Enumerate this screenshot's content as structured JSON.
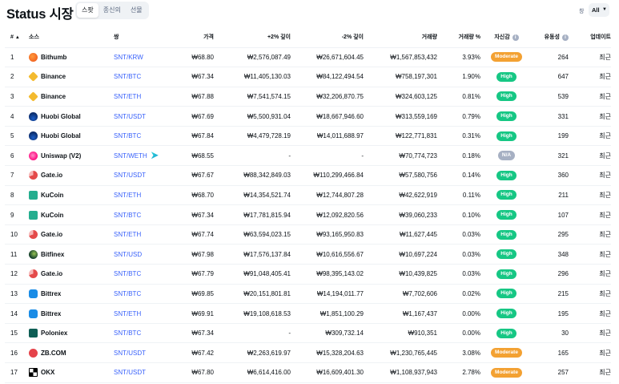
{
  "header": {
    "title": "Status 시장",
    "tabs": [
      {
        "label": "스팟",
        "active": true
      },
      {
        "label": "종신의",
        "active": false
      },
      {
        "label": "선물",
        "active": false
      }
    ],
    "filter_label": "창",
    "filter_value": "All"
  },
  "columns": {
    "rank": "#",
    "source": "소스",
    "pair": "쌍",
    "price": "가격",
    "plus2": "+2% 깊이",
    "minus2": "-2% 깊이",
    "volume": "거래량",
    "volume_pct": "거래량 %",
    "confidence": "자신감",
    "liquidity": "유동성",
    "updated": "업데이트"
  },
  "icons": {
    "sort": "sort-asc-icon",
    "info": "info-icon",
    "chevron": "chevron-down-icon"
  },
  "colors": {
    "link": "#3861fb",
    "high": "#16c784",
    "moderate": "#f3a132",
    "na": "#a6b0c3"
  },
  "rows": [
    {
      "rank": "1",
      "source": "Bithumb",
      "logo": "bithumb-logo-icon",
      "pair": "SNT/KRW",
      "price": "₩68.80",
      "plus2": "₩2,576,087.49",
      "minus2": "₩26,671,604.45",
      "volume": "₩1,567,853,432",
      "volume_pct": "3.93%",
      "confidence": "Moderate",
      "liquidity": "264",
      "updated": "최근"
    },
    {
      "rank": "2",
      "source": "Binance",
      "logo": "binance-logo-icon",
      "pair": "SNT/BTC",
      "price": "₩67.34",
      "plus2": "₩11,405,130.03",
      "minus2": "₩84,122,494.54",
      "volume": "₩758,197,301",
      "volume_pct": "1.90%",
      "confidence": "High",
      "liquidity": "647",
      "updated": "최근"
    },
    {
      "rank": "3",
      "source": "Binance",
      "logo": "binance-logo-icon",
      "pair": "SNT/ETH",
      "price": "₩67.88",
      "plus2": "₩7,541,574.15",
      "minus2": "₩32,206,870.75",
      "volume": "₩324,603,125",
      "volume_pct": "0.81%",
      "confidence": "High",
      "liquidity": "539",
      "updated": "최근"
    },
    {
      "rank": "4",
      "source": "Huobi Global",
      "logo": "huobi-logo-icon",
      "pair": "SNT/USDT",
      "price": "₩67.69",
      "plus2": "₩5,500,931.04",
      "minus2": "₩18,667,946.60",
      "volume": "₩313,559,169",
      "volume_pct": "0.79%",
      "confidence": "High",
      "liquidity": "331",
      "updated": "최근"
    },
    {
      "rank": "5",
      "source": "Huobi Global",
      "logo": "huobi-logo-icon",
      "pair": "SNT/BTC",
      "price": "₩67.84",
      "plus2": "₩4,479,728.19",
      "minus2": "₩14,011,688.97",
      "volume": "₩122,771,831",
      "volume_pct": "0.31%",
      "confidence": "High",
      "liquidity": "199",
      "updated": "최근"
    },
    {
      "rank": "6",
      "source": "Uniswap (V2)",
      "logo": "uniswap-logo-icon",
      "pair": "SNT/WETH",
      "pair_extra": true,
      "price": "₩68.55",
      "plus2": "-",
      "minus2": "-",
      "volume": "₩70,774,723",
      "volume_pct": "0.18%",
      "confidence": "N/A",
      "liquidity": "321",
      "updated": "최근"
    },
    {
      "rank": "7",
      "source": "Gate.io",
      "logo": "gateio-logo-icon",
      "pair": "SNT/USDT",
      "price": "₩67.67",
      "plus2": "₩88,342,849.03",
      "minus2": "₩110,299,466.84",
      "volume": "₩57,580,756",
      "volume_pct": "0.14%",
      "confidence": "High",
      "liquidity": "360",
      "updated": "최근"
    },
    {
      "rank": "8",
      "source": "KuCoin",
      "logo": "kucoin-logo-icon",
      "pair": "SNT/ETH",
      "price": "₩68.70",
      "plus2": "₩14,354,521.74",
      "minus2": "₩12,744,807.28",
      "volume": "₩42,622,919",
      "volume_pct": "0.11%",
      "confidence": "High",
      "liquidity": "211",
      "updated": "최근"
    },
    {
      "rank": "9",
      "source": "KuCoin",
      "logo": "kucoin-logo-icon",
      "pair": "SNT/BTC",
      "price": "₩67.34",
      "plus2": "₩17,781,815.94",
      "minus2": "₩12,092,820.56",
      "volume": "₩39,060,233",
      "volume_pct": "0.10%",
      "confidence": "High",
      "liquidity": "107",
      "updated": "최근"
    },
    {
      "rank": "10",
      "source": "Gate.io",
      "logo": "gateio-logo-icon",
      "pair": "SNT/ETH",
      "price": "₩67.74",
      "plus2": "₩63,594,023.15",
      "minus2": "₩93,165,950.83",
      "volume": "₩11,627,445",
      "volume_pct": "0.03%",
      "confidence": "High",
      "liquidity": "295",
      "updated": "최근"
    },
    {
      "rank": "11",
      "source": "Bitfinex",
      "logo": "bitfinex-logo-icon",
      "pair": "SNT/USD",
      "price": "₩67.98",
      "plus2": "₩17,576,137.84",
      "minus2": "₩10,616,556.67",
      "volume": "₩10,697,224",
      "volume_pct": "0.03%",
      "confidence": "High",
      "liquidity": "348",
      "updated": "최근"
    },
    {
      "rank": "12",
      "source": "Gate.io",
      "logo": "gateio-logo-icon",
      "pair": "SNT/BTC",
      "price": "₩67.79",
      "plus2": "₩91,048,405.41",
      "minus2": "₩98,395,143.02",
      "volume": "₩10,439,825",
      "volume_pct": "0.03%",
      "confidence": "High",
      "liquidity": "296",
      "updated": "최근"
    },
    {
      "rank": "13",
      "source": "Bittrex",
      "logo": "bittrex-logo-icon",
      "pair": "SNT/BTC",
      "price": "₩69.85",
      "plus2": "₩20,151,801.81",
      "minus2": "₩14,194,011.77",
      "volume": "₩7,702,606",
      "volume_pct": "0.02%",
      "confidence": "High",
      "liquidity": "215",
      "updated": "최근"
    },
    {
      "rank": "14",
      "source": "Bittrex",
      "logo": "bittrex-logo-icon",
      "pair": "SNT/ETH",
      "price": "₩69.91",
      "plus2": "₩19,108,618.53",
      "minus2": "₩1,851,100.29",
      "volume": "₩1,167,437",
      "volume_pct": "0.00%",
      "confidence": "High",
      "liquidity": "195",
      "updated": "최근"
    },
    {
      "rank": "15",
      "source": "Poloniex",
      "logo": "poloniex-logo-icon",
      "pair": "SNT/BTC",
      "price": "₩67.34",
      "plus2": "-",
      "minus2": "₩309,732.14",
      "volume": "₩910,351",
      "volume_pct": "0.00%",
      "confidence": "High",
      "liquidity": "30",
      "updated": "최근"
    },
    {
      "rank": "16",
      "source": "ZB.COM",
      "logo": "zbcom-logo-icon",
      "pair": "SNT/USDT",
      "price": "₩67.42",
      "plus2": "₩2,263,619.97",
      "minus2": "₩15,328,204.63",
      "volume": "₩1,230,765,445",
      "volume_pct": "3.08%",
      "confidence": "Moderate",
      "liquidity": "165",
      "updated": "최근"
    },
    {
      "rank": "17",
      "source": "OKX",
      "logo": "okx-logo-icon",
      "pair": "SNT/USDT",
      "price": "₩67.80",
      "plus2": "₩6,614,416.00",
      "minus2": "₩16,609,401.30",
      "volume": "₩1,108,937,943",
      "volume_pct": "2.78%",
      "confidence": "Moderate",
      "liquidity": "257",
      "updated": "최근"
    }
  ]
}
